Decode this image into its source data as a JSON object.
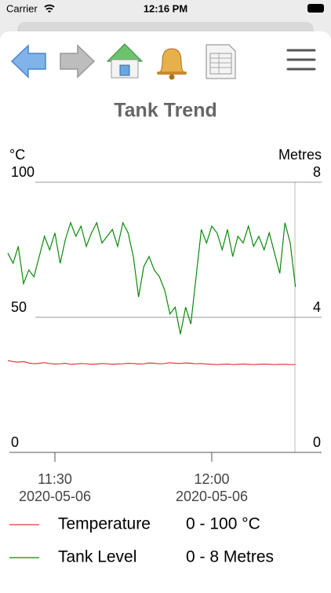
{
  "status_bar": {
    "carrier": "Carrier",
    "time": "12:16 PM"
  },
  "chart_data": {
    "type": "line",
    "title": "Tank Trend",
    "y_label": "°C",
    "y2_label": "Metres",
    "x": [
      "2020-05-06 11:21",
      "2020-05-06 11:22",
      "2020-05-06 11:23",
      "2020-05-06 11:24",
      "2020-05-06 11:25",
      "2020-05-06 11:26",
      "2020-05-06 11:27",
      "2020-05-06 11:28",
      "2020-05-06 11:29",
      "2020-05-06 11:30",
      "2020-05-06 11:31",
      "2020-05-06 11:32",
      "2020-05-06 11:33",
      "2020-05-06 11:34",
      "2020-05-06 11:35",
      "2020-05-06 11:36",
      "2020-05-06 11:37",
      "2020-05-06 11:38",
      "2020-05-06 11:39",
      "2020-05-06 11:40",
      "2020-05-06 11:41",
      "2020-05-06 11:42",
      "2020-05-06 11:43",
      "2020-05-06 11:44",
      "2020-05-06 11:45",
      "2020-05-06 11:46",
      "2020-05-06 11:47",
      "2020-05-06 11:48",
      "2020-05-06 11:49",
      "2020-05-06 11:50",
      "2020-05-06 11:51",
      "2020-05-06 11:52",
      "2020-05-06 11:53",
      "2020-05-06 11:54",
      "2020-05-06 11:55",
      "2020-05-06 11:56",
      "2020-05-06 11:57",
      "2020-05-06 11:58",
      "2020-05-06 11:59",
      "2020-05-06 12:00",
      "2020-05-06 12:01",
      "2020-05-06 12:02",
      "2020-05-06 12:03",
      "2020-05-06 12:04",
      "2020-05-06 12:05",
      "2020-05-06 12:06",
      "2020-05-06 12:07",
      "2020-05-06 12:08",
      "2020-05-06 12:09",
      "2020-05-06 12:10",
      "2020-05-06 12:11",
      "2020-05-06 12:12",
      "2020-05-06 12:13",
      "2020-05-06 12:14",
      "2020-05-06 12:15",
      "2020-05-06 12:16"
    ],
    "xlim": [
      "2020-05-06 11:21",
      "2020-05-06 12:21"
    ],
    "xticks": [
      {
        "value": "2020-05-06 11:30",
        "label": "11:30"
      },
      {
        "value": "2020-05-06 12:00",
        "label": "12:00"
      }
    ],
    "xtick_dates": [
      "2020-05-06",
      "2020-05-06"
    ],
    "ylim": [
      0,
      100
    ],
    "yticks": [
      0,
      50,
      100
    ],
    "y2lim": [
      0,
      8
    ],
    "y2ticks": [
      0,
      4,
      8
    ],
    "grid": true,
    "series": [
      {
        "name": "Temperature",
        "color": "#e03a3a",
        "range_label": "0 - 100 °C",
        "values": [
          34,
          33.6,
          33.4,
          33.6,
          33.1,
          32.8,
          33,
          33.2,
          32.9,
          32.7,
          32.8,
          33,
          32.6,
          32.7,
          32.9,
          32.8,
          32.6,
          32.7,
          32.9,
          32.8,
          32.6,
          32.7,
          32.8,
          33,
          32.9,
          32.7,
          32.8,
          33.1,
          33,
          32.8,
          32.9,
          33.2,
          33,
          32.9,
          33.1,
          33,
          32.8,
          32.9,
          32.7,
          32.6,
          32.5,
          32.6,
          32.7,
          32.5,
          32.6,
          32.7,
          32.6,
          32.5,
          32.6,
          32.7,
          32.6,
          32.5,
          32.6,
          32.6,
          32.5,
          32.5
        ]
      },
      {
        "name": "Tank Level",
        "color": "#0a8a0a",
        "axis": "y2",
        "range_label": "0 - 8 Metres",
        "values": [
          5.9,
          5.6,
          6.1,
          5.0,
          5.4,
          5.2,
          5.8,
          6.4,
          6.0,
          6.5,
          5.6,
          6.3,
          6.8,
          6.4,
          6.7,
          6.1,
          6.5,
          6.8,
          6.2,
          6.4,
          6.6,
          6.1,
          6.8,
          6.5,
          5.8,
          4.6,
          5.5,
          5.8,
          5.4,
          5.2,
          4.8,
          4.1,
          4.3,
          3.5,
          4.3,
          3.8,
          5.2,
          6.6,
          6.2,
          6.7,
          6.5,
          6.0,
          6.6,
          5.8,
          6.4,
          6.2,
          6.7,
          6.1,
          6.4,
          6.0,
          6.5,
          5.9,
          5.3,
          6.8,
          6.2,
          4.9
        ]
      }
    ]
  }
}
